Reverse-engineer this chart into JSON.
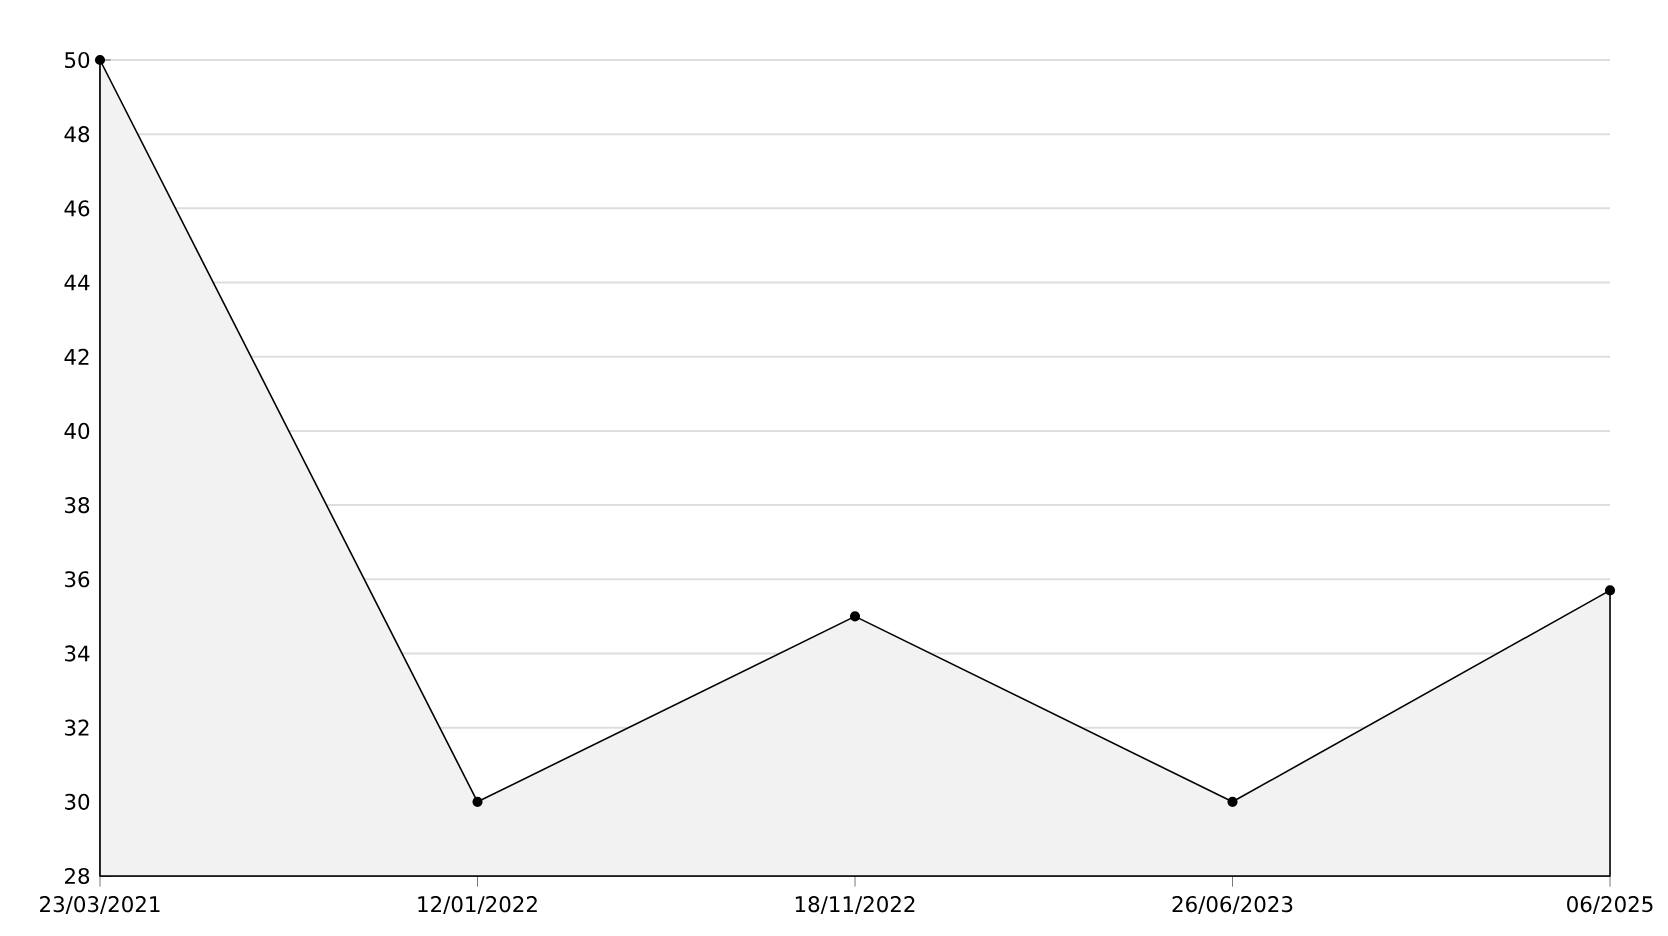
{
  "chart_data": {
    "type": "area",
    "categories": [
      "23/03/2021",
      "12/01/2022",
      "18/11/2022",
      "26/06/2023",
      "06/2025"
    ],
    "series": [
      {
        "color": "#000000",
        "values": [
          50,
          30,
          35,
          30,
          35.7
        ]
      }
    ],
    "ylim": [
      28,
      50
    ],
    "yticks": [
      28,
      30,
      32,
      34,
      36,
      38,
      40,
      42,
      44,
      46,
      48,
      50
    ],
    "grid": "y",
    "marker": "circle",
    "line_style": "solid"
  }
}
